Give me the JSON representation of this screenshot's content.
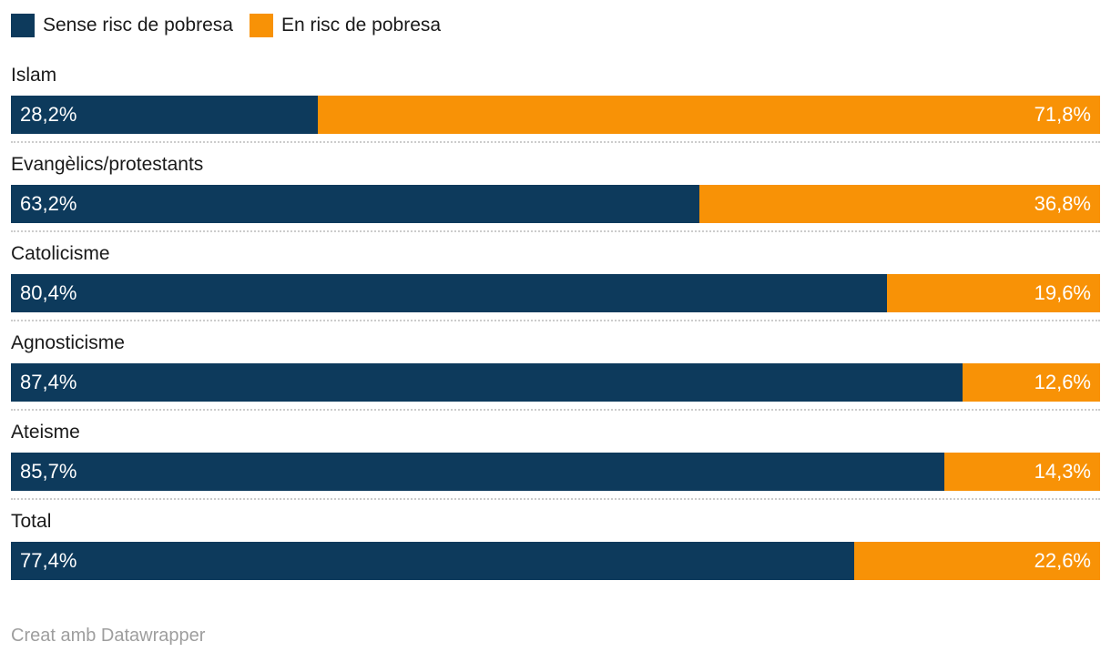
{
  "legend": {
    "items": [
      {
        "label": "Sense risc de pobresa",
        "color": "#0d3a5c"
      },
      {
        "label": "En risc de pobresa",
        "color": "#f89206"
      }
    ]
  },
  "chart_data": {
    "type": "bar",
    "stacked": true,
    "orientation": "horizontal",
    "categories": [
      "Islam",
      "Evangèlics/protestants",
      "Catolicisme",
      "Agnosticisme",
      "Ateisme",
      "Total"
    ],
    "series": [
      {
        "name": "Sense risc de pobresa",
        "color": "#0d3a5c",
        "values": [
          28.2,
          63.2,
          80.4,
          87.4,
          85.7,
          77.4
        ],
        "labels": [
          "28,2%",
          "63,2%",
          "80,4%",
          "87,4%",
          "85,7%",
          "77,4%"
        ]
      },
      {
        "name": "En risc de pobresa",
        "color": "#f89206",
        "values": [
          71.8,
          36.8,
          19.6,
          12.6,
          14.3,
          22.6
        ],
        "labels": [
          "71,8%",
          "36,8%",
          "19,6%",
          "12,6%",
          "14,3%",
          "22,6%"
        ]
      }
    ],
    "xlim": [
      0,
      100
    ],
    "grid": false,
    "legend_position": "top",
    "value_label_position": "inside"
  },
  "footer": {
    "credit": "Creat amb Datawrapper"
  },
  "colors": {
    "navy": "#0d3a5c",
    "orange": "#f89206",
    "separator": "#cccccc",
    "label_text": "#1a1a1a",
    "value_text": "#ffffff",
    "footer_text": "#9e9e9e",
    "background": "#ffffff"
  }
}
